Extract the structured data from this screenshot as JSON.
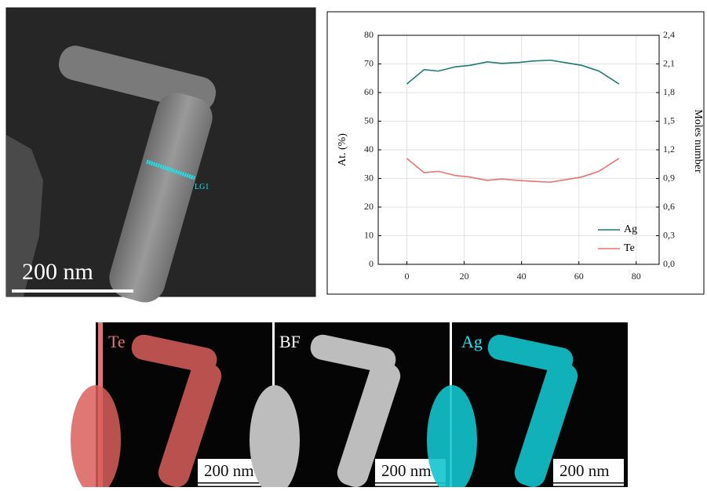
{
  "chart_data": {
    "type": "line",
    "x": [
      0,
      6,
      11,
      17,
      22,
      28,
      33,
      39,
      44,
      50,
      55,
      61,
      67,
      74
    ],
    "series": [
      {
        "name": "Ag",
        "color": "#1f7a72",
        "values": [
          63,
          68,
          67.5,
          69,
          69.5,
          70.7,
          70.2,
          70.5,
          71,
          71.3,
          70.5,
          69.5,
          67.5,
          63
        ]
      },
      {
        "name": "Te",
        "color": "#e8736f",
        "values": [
          37,
          32,
          32.5,
          31,
          30.5,
          29.3,
          29.8,
          29.3,
          29,
          28.7,
          29.5,
          30.5,
          32.5,
          37
        ]
      }
    ],
    "ylabel": "At. (%)",
    "y2label": "Moles number",
    "xlim": [
      -10,
      88
    ],
    "xticks": [
      0,
      20,
      40,
      60,
      80
    ],
    "ylim": [
      0,
      80
    ],
    "yticks": [
      0,
      10,
      20,
      30,
      40,
      50,
      60,
      70,
      80
    ],
    "y2lim": [
      0,
      2.4
    ],
    "y2ticks": [
      {
        "value": 0,
        "label": "0,0"
      },
      {
        "value": 0.3,
        "label": "0,3"
      },
      {
        "value": 0.6,
        "label": "0,6"
      },
      {
        "value": 0.9,
        "label": "0,9"
      },
      {
        "value": 1.2,
        "label": "1,2"
      },
      {
        "value": 1.5,
        "label": "1,5"
      },
      {
        "value": 1.8,
        "label": "1,8"
      },
      {
        "value": 2.1,
        "label": "2,1"
      },
      {
        "value": 2.4,
        "label": "2,4"
      }
    ],
    "grid": true,
    "legend": "lower right"
  },
  "micrograph": {
    "line_label": "LG1",
    "scale": "200 nm"
  },
  "maps": [
    {
      "label": "Te",
      "scale": "200 nm"
    },
    {
      "label": "BF",
      "scale": "200 nm"
    },
    {
      "label": "Ag",
      "scale": "200 nm"
    }
  ]
}
